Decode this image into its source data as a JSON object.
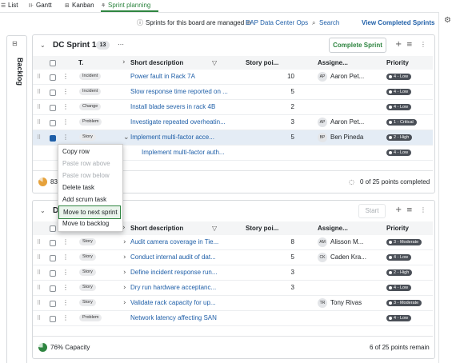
{
  "tabs": [
    "List",
    "Gantt",
    "Kanban",
    "Sprint planning"
  ],
  "info": {
    "text": "Sprints for this board are managed in",
    "link": "EAP Data Center Ops",
    "search": "Search",
    "view_completed": "View Completed Sprints"
  },
  "sidebar": {
    "label": "Backlog"
  },
  "columns": [
    "T.",
    "Short description",
    "Story poi...",
    "Assigne...",
    "Priority"
  ],
  "sprints": [
    {
      "title": "DC Sprint 1",
      "count": 13,
      "action": "Complete Sprint",
      "rows": [
        {
          "type": "Incident",
          "description": "Power fault in Rack 7A",
          "points": 10,
          "initials": "AP",
          "assignee": "Aaron Pet...",
          "priority": "4 - Low"
        },
        {
          "type": "Incident",
          "description": "Slow response time reported on ...",
          "points": 5,
          "priority": "4 - Low"
        },
        {
          "type": "Change",
          "description": "Install blade severs in rack 4B",
          "points": 2,
          "priority": "4 - Low"
        },
        {
          "type": "Problem",
          "description": "Investigate repeated overheatin...",
          "points": 3,
          "initials": "AP",
          "assignee": "Aaron Pet...",
          "priority": "1 - Critical"
        },
        {
          "type": "Story",
          "description": "Implement multi-factor acce...",
          "points": 5,
          "initials": "BP",
          "assignee": "Ben Pineda",
          "priority": "2 - High",
          "selected": true,
          "expanded": true
        },
        {
          "description": "Implement multi-factor auth...",
          "priority": "4 - Low",
          "subtask": true
        }
      ],
      "capacity": "83",
      "progress": "0 of 25 points completed"
    },
    {
      "title": "D",
      "action": "Start",
      "action_disabled": true,
      "rows": [
        {
          "type": "Story",
          "description": "Audit camera coverage in Tie...",
          "points": 8,
          "initials": "AM",
          "assignee": "Alisson M...",
          "priority": "3 - Moderate",
          "expandable": true
        },
        {
          "type": "Story",
          "description": "Conduct internal audit of dat...",
          "points": 5,
          "initials": "CK",
          "assignee": "Caden Kra...",
          "priority": "4 - Low",
          "expandable": true
        },
        {
          "type": "Story",
          "description": "Define incident response run...",
          "points": 3,
          "priority": "2 - High",
          "expandable": true
        },
        {
          "type": "Story",
          "description": "Dry run hardware acceptanc...",
          "points": 3,
          "priority": "4 - Low",
          "expandable": true
        },
        {
          "type": "Story",
          "description": "Validate rack capacity for up...",
          "initials": "TR",
          "assignee": "Tony Rivas",
          "priority": "3 - Moderate",
          "expandable": true
        },
        {
          "type": "Problem",
          "description": "Network latency affecting SAN",
          "priority": "4 - Low"
        }
      ],
      "capacity": "76% Capacity",
      "progress": "6 of 25 points remain"
    }
  ],
  "context_menu": [
    {
      "label": "Copy row"
    },
    {
      "label": "Paste row above",
      "disabled": true
    },
    {
      "label": "Paste row below",
      "disabled": true
    },
    {
      "label": "Delete task"
    },
    {
      "label": "Add scrum task"
    },
    {
      "label": "Move to next sprint",
      "highlighted": true
    },
    {
      "label": "Move to backlog"
    }
  ]
}
